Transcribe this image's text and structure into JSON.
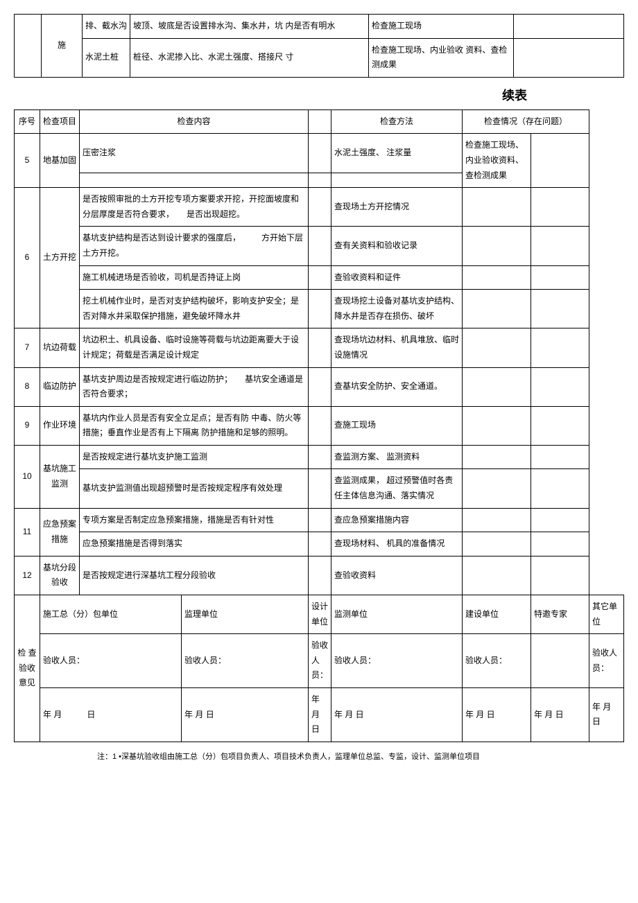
{
  "tableA": {
    "rows": [
      {
        "cat": "施",
        "sub": "排、截水沟",
        "content": "坡顶、坡底是否设置排水沟、集水井，坑 内是否有明水",
        "method": "检查施工现场"
      },
      {
        "cat": "",
        "sub": "水泥土桩",
        "content": "桩径、水泥掺入比、水泥土强度、搭接尺 寸",
        "method": "检查施工现场、内业验收 资料、查检测成果"
      }
    ]
  },
  "continuationLabel": "续表",
  "tableB": {
    "header": {
      "seq": "序号",
      "cat": "检查项目",
      "content": "检查内容",
      "method": "检查方法",
      "status": "检查情况（存在问题）"
    },
    "rows": [
      {
        "seq": "5",
        "cat": "地基加固",
        "sub": "压密注浆",
        "content": "",
        "methodA": "水泥土强度、 注浆量",
        "methodB": "检查施工现场、 内业验收资料、查检测成果",
        "subrow2_empty": true
      },
      {
        "seq": "6",
        "cat": "土方开挖",
        "items": [
          {
            "content": "是否按照审批的土方开挖专项方案要求开挖，开挖面坡度和分层厚度是否符合要求，　　是否出现超挖。",
            "method": "查现场土方开挖情况"
          },
          {
            "content": "基坑支护结构是否达到设计要求的强度后，　　　方开始下层土方开挖。",
            "method": "查有关资料和验收记录"
          },
          {
            "content": "施工机械进场是否验收，司机是否持证上岗",
            "method": "查验收资料和证件"
          },
          {
            "content": "挖土机械作业时，是否对支护结构破坏，影响支护安全；是否对降水井采取保护措施，避免破坏降水井",
            "method": "查现场挖土设备对基坑支护结构、降水井是否存在损伤、破坏"
          }
        ]
      },
      {
        "seq": "7",
        "cat": "坑边荷载",
        "items": [
          {
            "content": "坑边积土、机具设备、临时设施等荷载与坑边距离要大于设计规定；荷载是否满足设计规定",
            "method": "查现场坑边材料、机具堆放、临时设施情况"
          }
        ]
      },
      {
        "seq": "8",
        "cat": "临边防护",
        "items": [
          {
            "content": "基坑支护周边是否按规定进行临边防护；　　基坑安全通道是否符合要求；",
            "method": "查基坑安全防护、安全通道。"
          }
        ]
      },
      {
        "seq": "9",
        "cat": "作业环境",
        "items": [
          {
            "content": "基坑内作业人员是否有安全立足点；是否有防 中毒、防火等措施；垂直作业是否有上下隔离 防护措施和足够的照明。",
            "method": "查施工现场"
          }
        ]
      },
      {
        "seq": "10",
        "cat": "基坑施工监测",
        "items": [
          {
            "content": "是否按规定进行基坑支护施工监测",
            "method": "查监测方案、 监测资料"
          },
          {
            "content": "基坑支护监测值出现超预警时是否按规定程序有效处理",
            "method": "查监测成果， 超过预警值时各责任主体信息沟通、落实情况"
          }
        ]
      },
      {
        "seq": "11",
        "cat": "应急预案措施",
        "items": [
          {
            "content": "专项方案是否制定应急预案措施，措施是否有针对性",
            "method": "查应急预案措施内容"
          },
          {
            "content": "应急预案措施是否得到落实",
            "method": "查现场材料、 机具的准备情况"
          }
        ]
      },
      {
        "seq": "12",
        "cat": "基坑分段验收",
        "items": [
          {
            "content": "是否按规定进行深基坑工程分段验收",
            "method": "查验收资料"
          }
        ]
      }
    ],
    "footer": {
      "label": "检 查验收意见",
      "cols": [
        {
          "title": "施工总（分）包单位",
          "person": "验收人员：",
          "date": "年 月　　　日"
        },
        {
          "title": "监理单位",
          "person": "验收人员：",
          "date": "年 月 日"
        },
        {
          "title": "设计单位",
          "person": "验收人员：",
          "date": "年 月 日"
        },
        {
          "title": "监测单位",
          "person": "验收人员：",
          "date": "年 月 日"
        },
        {
          "title": "建设单位",
          "person": "验收人员：",
          "date": "年 月 日"
        },
        {
          "title": "特邀专家",
          "person": "",
          "date": "年 月 日"
        },
        {
          "title": "其它单位",
          "person": "验收人员：",
          "date": "年 月 日"
        }
      ]
    }
  },
  "footnote": "注：1 •深基坑验收组由施工总（分）包项目负责人、项目技术负责人，监理单位总监、专监，设计、监测单位项目"
}
